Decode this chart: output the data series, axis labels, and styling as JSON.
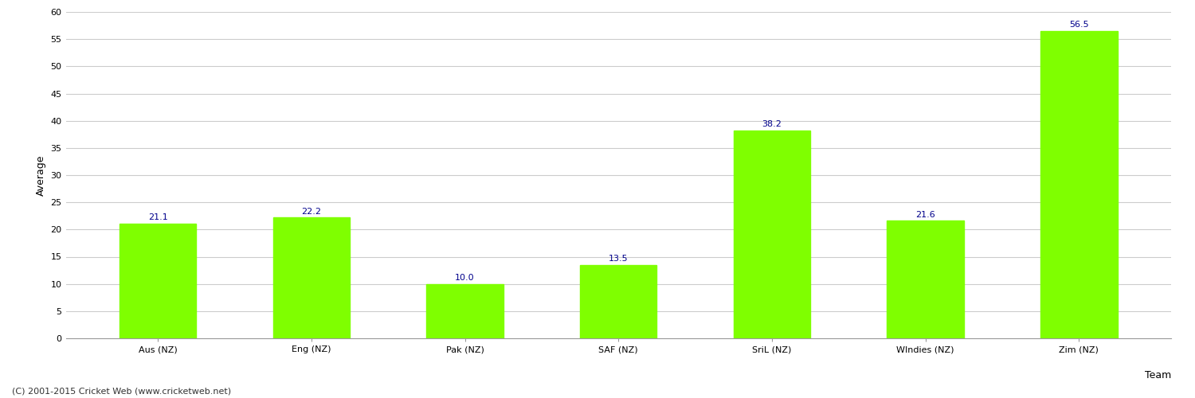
{
  "categories": [
    "Aus (NZ)",
    "Eng (NZ)",
    "Pak (NZ)",
    "SAF (NZ)",
    "SriL (NZ)",
    "WIndies (NZ)",
    "Zim (NZ)"
  ],
  "values": [
    21.1,
    22.2,
    10.0,
    13.5,
    38.2,
    21.6,
    56.5
  ],
  "bar_color": "#7fff00",
  "bar_edge_color": "#7fff00",
  "value_label_color": "#00008b",
  "xlabel": "Team",
  "ylabel": "Average",
  "ylim": [
    0,
    60
  ],
  "yticks": [
    0,
    5,
    10,
    15,
    20,
    25,
    30,
    35,
    40,
    45,
    50,
    55,
    60
  ],
  "grid_color": "#cccccc",
  "bg_color": "#ffffff",
  "footer": "(C) 2001-2015 Cricket Web (www.cricketweb.net)",
  "label_fontsize": 9,
  "tick_fontsize": 8,
  "value_fontsize": 8,
  "footer_fontsize": 8,
  "bar_width": 0.5
}
